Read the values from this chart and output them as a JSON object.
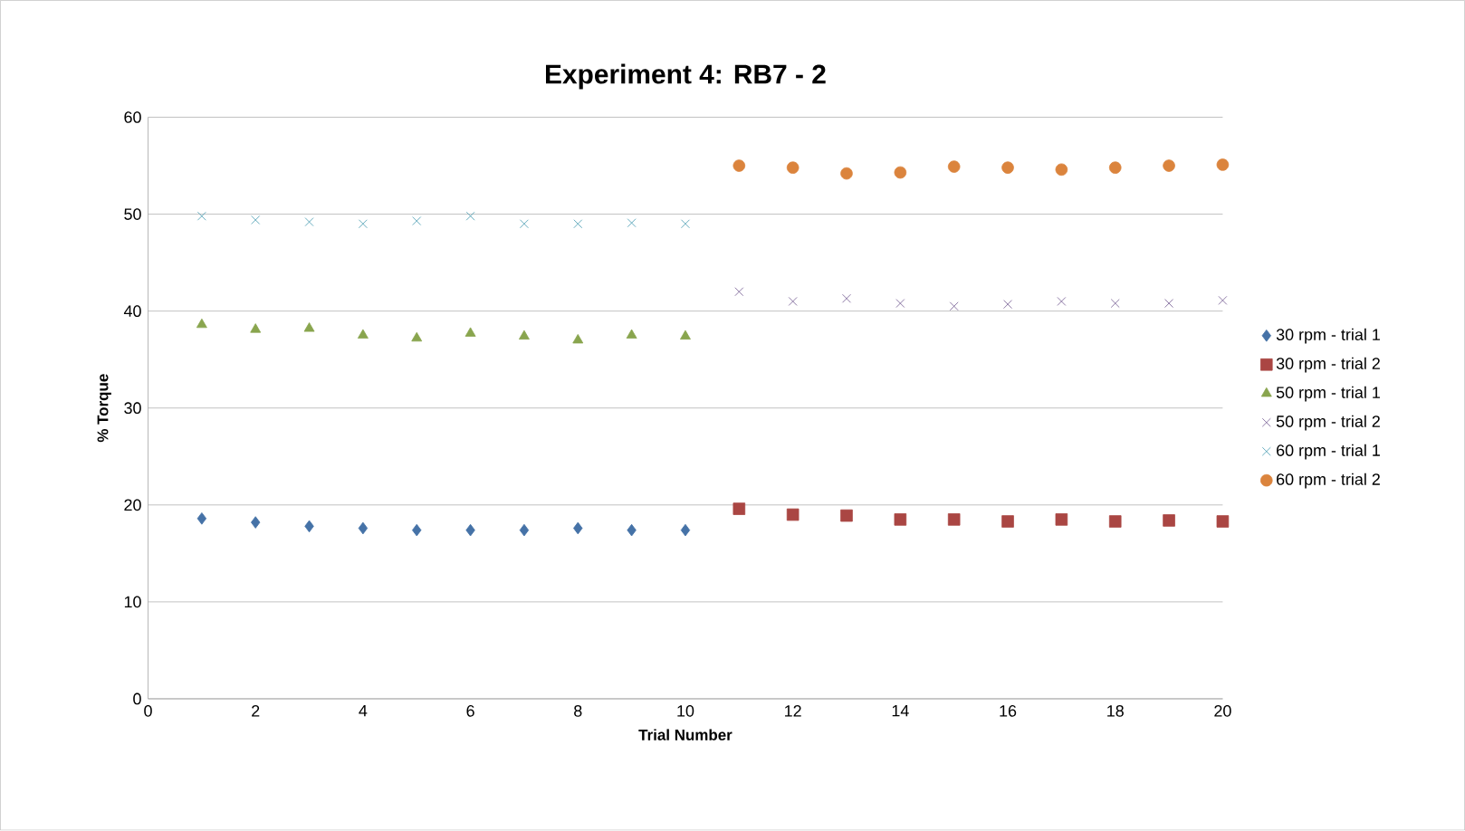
{
  "chart_data": {
    "type": "scatter",
    "title": "Experiment 4: RB7 - 2",
    "xlabel": "Trial Number",
    "ylabel": "% Torque",
    "xlim": [
      0,
      20
    ],
    "xticks": [
      0,
      2,
      4,
      6,
      8,
      10,
      12,
      14,
      16,
      18,
      20
    ],
    "ylim": [
      0,
      60
    ],
    "yticks": [
      0,
      10,
      20,
      30,
      40,
      50,
      60
    ],
    "grid": "y",
    "legend": "right",
    "series": [
      {
        "name": "30 rpm - trial 1",
        "color": "#4572a7",
        "marker": "diamond",
        "x": [
          1,
          2,
          3,
          4,
          5,
          6,
          7,
          8,
          9,
          10
        ],
        "values": [
          18.6,
          18.2,
          17.8,
          17.6,
          17.4,
          17.4,
          17.4,
          17.6,
          17.4,
          17.4
        ]
      },
      {
        "name": "30 rpm - trial 2",
        "color": "#aa4643",
        "marker": "square",
        "x": [
          11,
          12,
          13,
          14,
          15,
          16,
          17,
          18,
          19,
          20
        ],
        "values": [
          19.6,
          19.0,
          18.9,
          18.5,
          18.5,
          18.3,
          18.5,
          18.3,
          18.4,
          18.3
        ]
      },
      {
        "name": "50 rpm - trial 1",
        "color": "#89a54e",
        "marker": "triangle",
        "x": [
          1,
          2,
          3,
          4,
          5,
          6,
          7,
          8,
          9,
          10
        ],
        "values": [
          38.6,
          38.1,
          38.2,
          37.5,
          37.2,
          37.7,
          37.4,
          37.0,
          37.5,
          37.4
        ]
      },
      {
        "name": "50 rpm - trial 2",
        "color": "#71588f",
        "marker": "cross",
        "x": [
          11,
          12,
          13,
          14,
          15,
          16,
          17,
          18,
          19,
          20
        ],
        "values": [
          42.0,
          41.0,
          41.3,
          40.8,
          40.5,
          40.7,
          41.0,
          40.8,
          40.8,
          41.1
        ]
      },
      {
        "name": "60 rpm - trial 1",
        "color": "#4198af",
        "marker": "cross",
        "x": [
          1,
          2,
          3,
          4,
          5,
          6,
          7,
          8,
          9,
          10
        ],
        "values": [
          49.8,
          49.4,
          49.2,
          49.0,
          49.3,
          49.8,
          49.0,
          49.0,
          49.1,
          49.0
        ]
      },
      {
        "name": "60 rpm - trial 2",
        "color": "#db843d",
        "marker": "circle",
        "x": [
          11,
          12,
          13,
          14,
          15,
          16,
          17,
          18,
          19,
          20
        ],
        "values": [
          55.0,
          54.8,
          54.2,
          54.3,
          54.9,
          54.8,
          54.6,
          54.8,
          55.0,
          55.1
        ]
      }
    ]
  }
}
